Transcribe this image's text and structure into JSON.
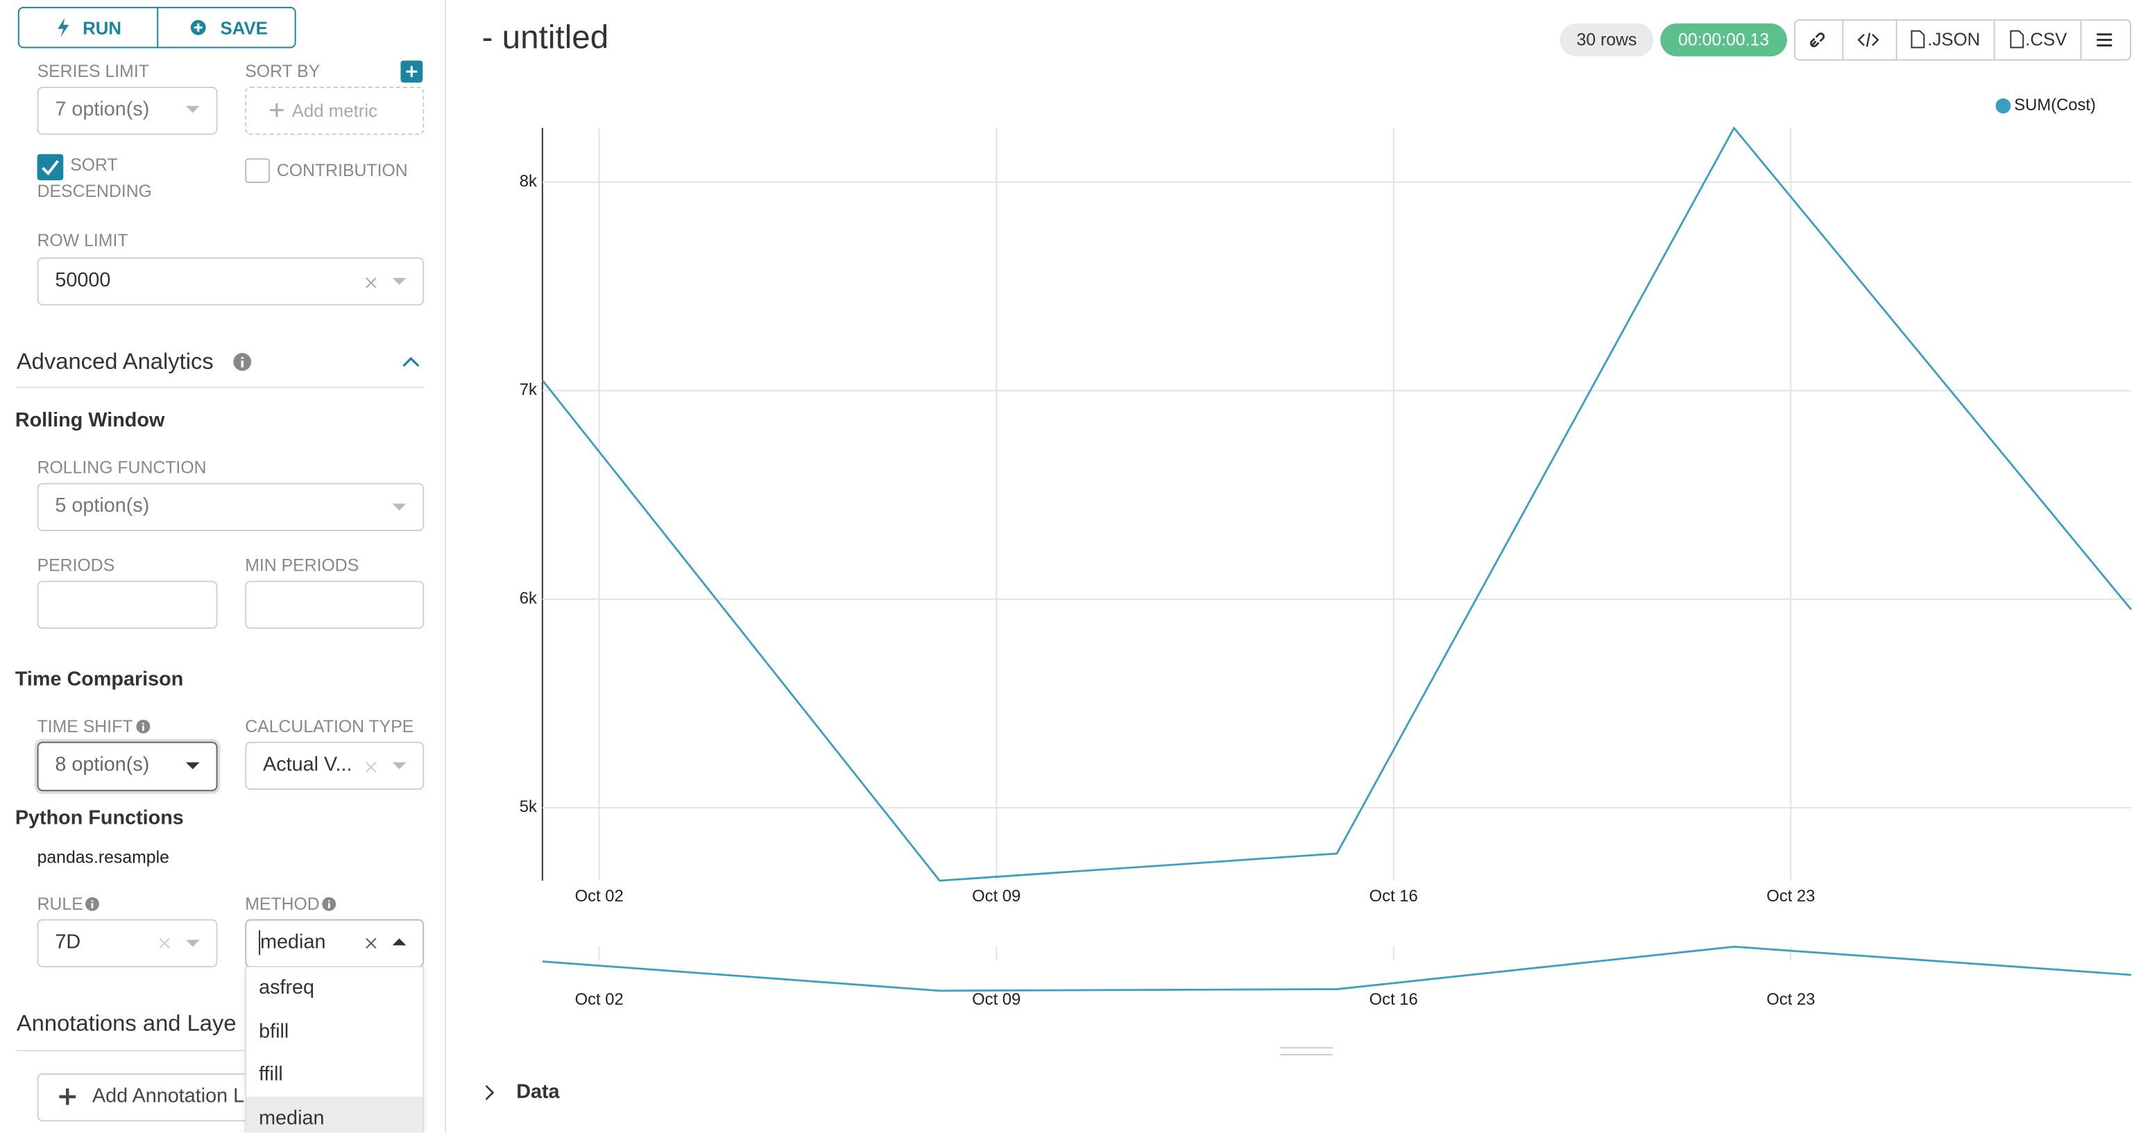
{
  "toolbar": {
    "run": "RUN",
    "save": "SAVE"
  },
  "query": {
    "series_limit_label": "SERIES LIMIT",
    "series_limit_value": "7 option(s)",
    "sort_by_label": "SORT BY",
    "sort_by_placeholder": "Add metric",
    "sort_descending_1": "SORT",
    "sort_descending_2": "DESCENDING",
    "contribution": "CONTRIBUTION",
    "row_limit_label": "ROW LIMIT",
    "row_limit_value": 50000
  },
  "advanced": {
    "title": "Advanced Analytics",
    "rolling_title": "Rolling Window",
    "rolling_function_label": "ROLLING FUNCTION",
    "rolling_function_value": "5 option(s)",
    "periods_label": "PERIODS",
    "min_periods_label": "MIN PERIODS",
    "time_comparison_title": "Time Comparison",
    "time_shift_label": "TIME SHIFT",
    "time_shift_value": "8 option(s)",
    "calculation_type_label": "CALCULATION TYPE",
    "calculation_type_value": "Actual V...",
    "python_title": "Python Functions",
    "resample": "pandas.resample",
    "rule_label": "RULE",
    "rule_value": "7D",
    "method_label": "METHOD",
    "method_value": "median",
    "method_options": [
      "asfreq",
      "bfill",
      "ffill",
      "median"
    ]
  },
  "annotations": {
    "title": "Annotations and Laye",
    "add_button": "Add Annotation L"
  },
  "header": {
    "title": "- untitled",
    "rows": "30 rows",
    "duration": "00:00:00.13",
    "json": ".JSON",
    "csv": ".CSV"
  },
  "chart_data": {
    "type": "line",
    "x": [
      "Oct 01",
      "Oct 08",
      "Oct 15",
      "Oct 22",
      "Oct 29"
    ],
    "series": [
      {
        "name": "SUM(Cost)",
        "color": "#3a9fc0",
        "values": [
          7050,
          4650,
          4780,
          8260,
          5950
        ]
      }
    ],
    "xlim": [
      "Oct 01",
      "Oct 29"
    ],
    "xticks": [
      "Oct 02",
      "Oct 09",
      "Oct 16",
      "Oct 23"
    ],
    "ylim": [
      4650,
      8260
    ],
    "yticks": [
      {
        "value": 5000,
        "label": "5k"
      },
      {
        "value": 6000,
        "label": "6k"
      },
      {
        "value": 7000,
        "label": "7k"
      },
      {
        "value": 8000,
        "label": "8k"
      }
    ],
    "grid": true,
    "legend": "top-right"
  },
  "data_section": "Data"
}
